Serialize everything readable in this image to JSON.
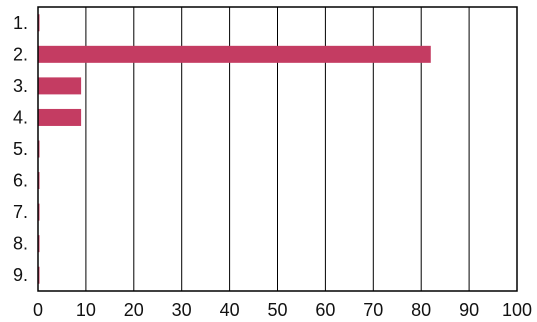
{
  "chart_data": {
    "type": "bar",
    "orientation": "horizontal",
    "categories": [
      "1.",
      "2.",
      "3.",
      "4.",
      "5.",
      "6.",
      "7.",
      "8.",
      "9."
    ],
    "values": [
      0,
      82,
      9,
      9,
      0,
      0,
      0,
      0,
      0
    ],
    "xlim": [
      0,
      100
    ],
    "xticks": [
      "0",
      "10",
      "20",
      "30",
      "40",
      "50",
      "60",
      "70",
      "80",
      "90",
      "100"
    ],
    "grid": "vertical",
    "bar_color": "#c43c62",
    "title": "",
    "xlabel": "",
    "ylabel": ""
  }
}
